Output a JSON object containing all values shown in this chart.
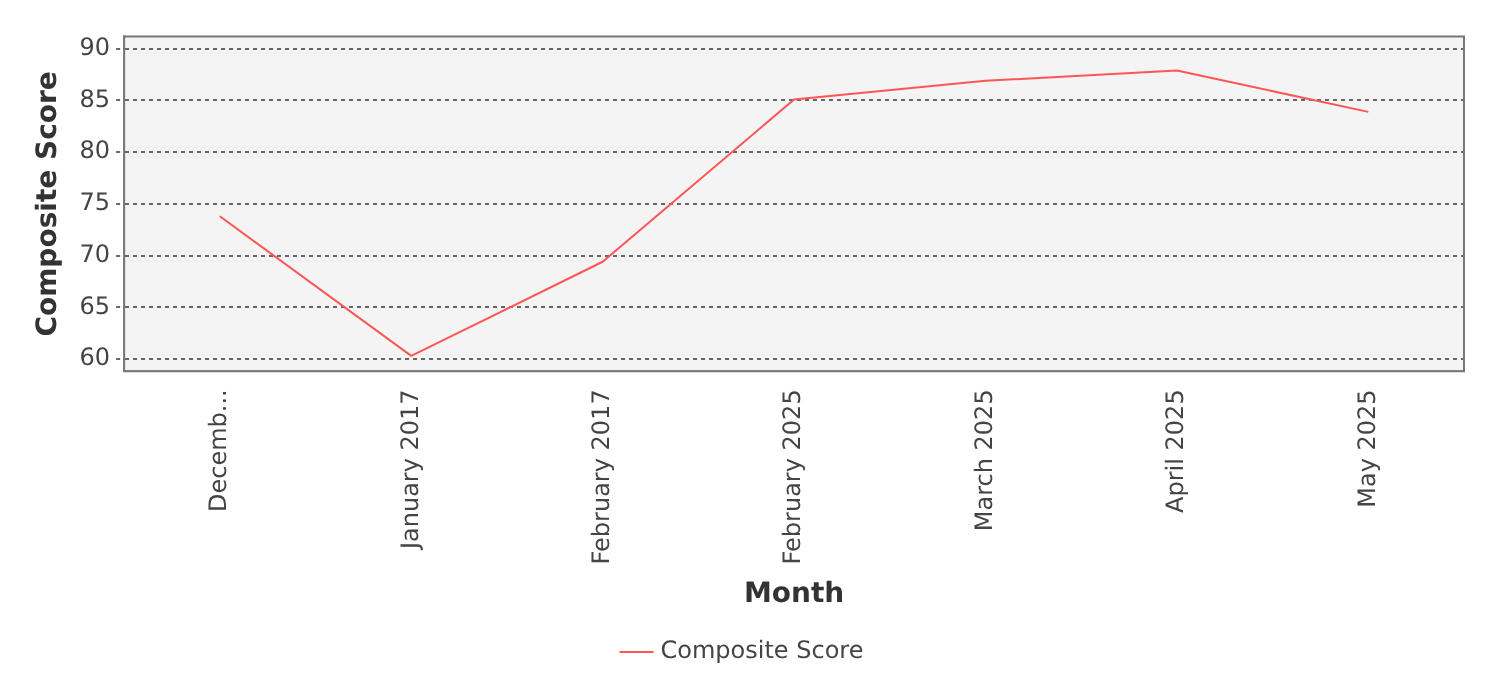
{
  "chart_data": {
    "type": "line",
    "xlabel": "Month",
    "ylabel": "Composite Score",
    "categories": [
      "Decemb...",
      "January 2017",
      "February 2017",
      "February 2025",
      "March 2025",
      "April 2025",
      "May 2025"
    ],
    "series": [
      {
        "name": "Composite Score",
        "color": "#ff5555",
        "values": [
          73.8,
          60.3,
          69.4,
          85.1,
          86.9,
          87.9,
          83.9
        ]
      }
    ],
    "ylim": [
      58.8,
      91.2
    ],
    "yticks": [
      60,
      65,
      70,
      75,
      80,
      85,
      90
    ],
    "grid": "y",
    "legend": "bottom",
    "marker": "none",
    "line_style": "solid"
  }
}
